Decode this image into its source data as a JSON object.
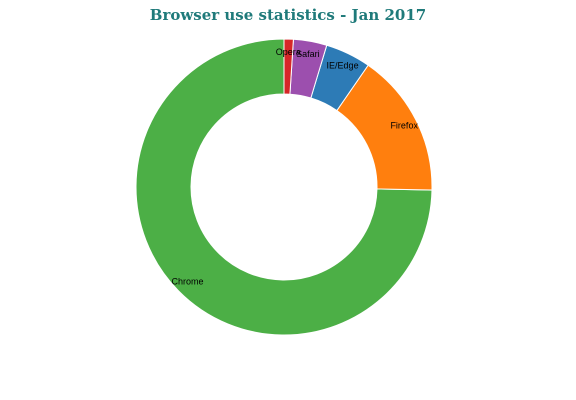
{
  "chart_data": {
    "type": "pie",
    "variant": "donut",
    "title": "Browser use statistics - Jan 2017",
    "categories": [
      "Chrome",
      "Firefox",
      "IE/Edge",
      "Safari",
      "Opera"
    ],
    "values": [
      73.7,
      15.5,
      4.9,
      3.6,
      1.0
    ],
    "unit": "%",
    "colors": [
      "#4caf46",
      "#ff7f0e",
      "#2d7bb6",
      "#9c4fae",
      "#d62728"
    ],
    "legend": "none",
    "labels": "on-slice"
  }
}
